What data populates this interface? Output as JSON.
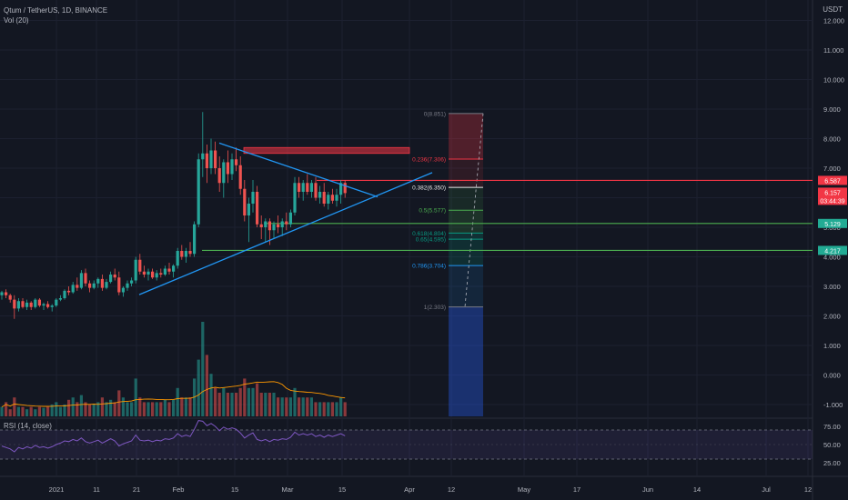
{
  "header": {
    "symbol_line": "Qtum / TetherUS, 1D, BINANCE",
    "volume_line": "Vol (20)"
  },
  "axis": {
    "currency": "USDT"
  },
  "rsi": {
    "title": "RSI (14, close)"
  },
  "chart_data": {
    "type": "candlestick",
    "price_scale": [
      "12.000",
      "11.000",
      "10.000",
      "9.000",
      "8.000",
      "7.000",
      "6.000",
      "5.000",
      "4.000",
      "3.000",
      "2.000",
      "1.000",
      "0.000",
      "-1.000"
    ],
    "rsi_scale": [
      "75.00",
      "50.00",
      "25.00"
    ],
    "x_ticks": [
      "2021",
      "11",
      "21",
      "Feb",
      "15",
      "Mar",
      "15",
      "Apr",
      "12",
      "May",
      "17",
      "Jun",
      "14",
      "Jul",
      "12"
    ],
    "price_labels": [
      {
        "text": "6.587",
        "value": 6.587,
        "color": "#f23645"
      },
      {
        "text": "6.157",
        "value": 6.157,
        "color": "#f23645"
      },
      {
        "text": "03:44:39",
        "value": 5.88,
        "color": "#f23645"
      },
      {
        "text": "5.129",
        "value": 5.129,
        "color": "#22ab94"
      },
      {
        "text": "4.217",
        "value": 4.217,
        "color": "#22ab94"
      }
    ],
    "horizontal_lines": [
      {
        "value": 6.587,
        "color": "#f23645"
      },
      {
        "value": 5.129,
        "color": "#4caf50"
      },
      {
        "value": 4.217,
        "color": "#4caf50"
      }
    ],
    "fib_levels": [
      {
        "ratio": "0",
        "value": 8.851,
        "text": "0(8.851)",
        "color": "#787b86"
      },
      {
        "ratio": "0.236",
        "value": 7.306,
        "text": "0.236(7.306)",
        "color": "#f23645"
      },
      {
        "ratio": "0.382",
        "value": 6.35,
        "text": "0.382(6.350)",
        "color": "#e8e8e8"
      },
      {
        "ratio": "0.5",
        "value": 5.577,
        "text": "0.5(5.577)",
        "color": "#4caf50"
      },
      {
        "ratio": "0.618",
        "value": 4.804,
        "text": "0.618(4.804)",
        "color": "#089981"
      },
      {
        "ratio": "0.65",
        "value": 4.595,
        "text": "0.65(4.595)",
        "color": "#089981"
      },
      {
        "ratio": "0.786",
        "value": 3.704,
        "text": "0.786(3.704)",
        "color": "#2196f3"
      },
      {
        "ratio": "1",
        "value": 2.303,
        "text": "1(2.303)",
        "color": "#787b86"
      }
    ],
    "candles": [
      [
        2.7,
        2.85,
        2.55,
        2.8
      ],
      [
        2.8,
        2.9,
        2.6,
        2.7
      ],
      [
        2.7,
        2.75,
        2.45,
        2.55
      ],
      [
        2.55,
        2.7,
        1.9,
        2.25
      ],
      [
        2.25,
        2.6,
        2.15,
        2.5
      ],
      [
        2.5,
        2.6,
        2.25,
        2.3
      ],
      [
        2.3,
        2.55,
        2.2,
        2.45
      ],
      [
        2.45,
        2.5,
        2.2,
        2.3
      ],
      [
        2.3,
        2.6,
        2.25,
        2.55
      ],
      [
        2.55,
        2.6,
        2.3,
        2.35
      ],
      [
        2.35,
        2.45,
        2.2,
        2.4
      ],
      [
        2.4,
        2.5,
        2.25,
        2.3
      ],
      [
        2.3,
        2.4,
        2.15,
        2.35
      ],
      [
        2.35,
        2.6,
        2.3,
        2.55
      ],
      [
        2.55,
        2.7,
        2.5,
        2.6
      ],
      [
        2.6,
        2.9,
        2.55,
        2.85
      ],
      [
        2.85,
        3.0,
        2.7,
        2.8
      ],
      [
        2.8,
        3.15,
        2.75,
        3.05
      ],
      [
        3.05,
        3.3,
        2.85,
        2.95
      ],
      [
        2.95,
        3.55,
        2.9,
        3.45
      ],
      [
        3.45,
        3.6,
        3.0,
        3.1
      ],
      [
        3.1,
        3.2,
        2.8,
        2.95
      ],
      [
        2.95,
        3.2,
        2.9,
        3.1
      ],
      [
        3.1,
        3.3,
        2.95,
        3.25
      ],
      [
        3.25,
        3.4,
        2.85,
        2.95
      ],
      [
        2.95,
        3.25,
        2.9,
        3.15
      ],
      [
        3.15,
        3.5,
        3.1,
        3.4
      ],
      [
        3.4,
        3.6,
        3.2,
        3.3
      ],
      [
        3.3,
        3.5,
        2.7,
        2.8
      ],
      [
        2.8,
        3.0,
        2.65,
        2.95
      ],
      [
        2.95,
        3.2,
        2.85,
        3.1
      ],
      [
        3.1,
        3.3,
        3.0,
        3.2
      ],
      [
        3.2,
        4.0,
        3.1,
        3.9
      ],
      [
        3.9,
        4.1,
        3.4,
        3.5
      ],
      [
        3.5,
        3.7,
        3.3,
        3.4
      ],
      [
        3.4,
        3.6,
        3.2,
        3.5
      ],
      [
        3.5,
        3.6,
        3.25,
        3.3
      ],
      [
        3.3,
        3.55,
        3.2,
        3.45
      ],
      [
        3.45,
        3.6,
        3.3,
        3.4
      ],
      [
        3.4,
        3.7,
        3.35,
        3.6
      ],
      [
        3.6,
        3.8,
        3.4,
        3.5
      ],
      [
        3.5,
        3.75,
        3.3,
        3.7
      ],
      [
        3.7,
        4.3,
        3.6,
        4.2
      ],
      [
        4.2,
        4.4,
        3.9,
        4.0
      ],
      [
        4.0,
        4.3,
        3.8,
        4.2
      ],
      [
        4.2,
        4.5,
        4.0,
        4.1
      ],
      [
        4.1,
        5.2,
        4.0,
        5.1
      ],
      [
        5.1,
        7.5,
        5.0,
        7.3
      ],
      [
        7.3,
        8.9,
        6.7,
        7.5
      ],
      [
        7.5,
        7.8,
        6.5,
        7.0
      ],
      [
        7.0,
        8.0,
        6.8,
        7.6
      ],
      [
        7.6,
        7.9,
        6.8,
        7.0
      ],
      [
        7.0,
        7.4,
        6.2,
        6.5
      ],
      [
        6.5,
        7.3,
        6.0,
        7.2
      ],
      [
        7.2,
        7.6,
        6.5,
        6.8
      ],
      [
        6.8,
        7.5,
        6.6,
        7.3
      ],
      [
        7.3,
        7.7,
        6.9,
        7.1
      ],
      [
        7.1,
        7.4,
        6.1,
        6.3
      ],
      [
        6.3,
        6.6,
        5.2,
        5.4
      ],
      [
        5.4,
        6.0,
        4.5,
        5.8
      ],
      [
        5.8,
        6.6,
        5.5,
        6.2
      ],
      [
        6.2,
        6.4,
        5.0,
        5.1
      ],
      [
        5.1,
        5.4,
        4.6,
        5.0
      ],
      [
        5.0,
        5.3,
        4.5,
        5.2
      ],
      [
        5.2,
        5.3,
        4.4,
        4.9
      ],
      [
        4.9,
        5.2,
        4.6,
        5.1
      ],
      [
        5.1,
        5.4,
        4.8,
        5.0
      ],
      [
        5.0,
        5.3,
        4.7,
        5.2
      ],
      [
        5.2,
        5.5,
        4.9,
        5.1
      ],
      [
        5.1,
        5.6,
        5.0,
        5.5
      ],
      [
        5.5,
        6.7,
        5.4,
        6.5
      ],
      [
        6.5,
        6.7,
        6.0,
        6.2
      ],
      [
        6.2,
        6.6,
        5.9,
        6.5
      ],
      [
        6.5,
        6.8,
        6.1,
        6.2
      ],
      [
        6.2,
        6.6,
        6.0,
        6.5
      ],
      [
        6.5,
        6.7,
        5.9,
        6.0
      ],
      [
        6.0,
        6.4,
        5.8,
        6.2
      ],
      [
        6.2,
        6.5,
        5.7,
        5.8
      ],
      [
        5.8,
        6.2,
        5.6,
        6.1
      ],
      [
        6.1,
        6.3,
        5.8,
        5.9
      ],
      [
        5.9,
        6.3,
        5.7,
        6.1
      ],
      [
        6.1,
        6.6,
        5.8,
        6.5
      ],
      [
        6.5,
        6.6,
        6.0,
        6.157
      ]
    ],
    "volume": [
      2,
      3,
      1.5,
      4,
      2,
      2,
      1.5,
      2,
      1.5,
      2,
      1.8,
      2,
      2.5,
      3,
      2,
      2.5,
      3.5,
      4,
      3,
      4.5,
      3,
      2.5,
      2.5,
      3,
      4,
      3,
      3.5,
      3,
      5.5,
      4,
      3,
      3,
      8,
      4,
      3,
      3,
      3,
      3,
      3,
      3.5,
      3,
      3.5,
      6,
      4,
      4,
      4,
      8,
      12,
      20,
      13,
      9,
      6,
      5,
      6,
      5,
      5,
      5,
      6,
      8,
      6,
      6,
      7,
      5,
      5,
      5,
      5,
      4,
      4,
      4,
      4,
      6,
      4,
      4,
      4,
      4,
      3,
      3,
      3,
      3,
      3,
      3,
      4,
      3
    ],
    "rsi": [
      48,
      46,
      44,
      40,
      46,
      44,
      47,
      45,
      49,
      46,
      47,
      45,
      47,
      50,
      52,
      55,
      54,
      57,
      55,
      59,
      54,
      52,
      54,
      56,
      52,
      55,
      58,
      55,
      48,
      51,
      53,
      55,
      63,
      56,
      55,
      56,
      54,
      56,
      55,
      58,
      57,
      59,
      65,
      61,
      63,
      61,
      71,
      83,
      82,
      76,
      79,
      75,
      69,
      74,
      71,
      73,
      71,
      66,
      59,
      63,
      66,
      57,
      55,
      57,
      54,
      57,
      56,
      58,
      57,
      60,
      67,
      63,
      65,
      63,
      65,
      61,
      63,
      60,
      63,
      61,
      63,
      65,
      62
    ]
  }
}
